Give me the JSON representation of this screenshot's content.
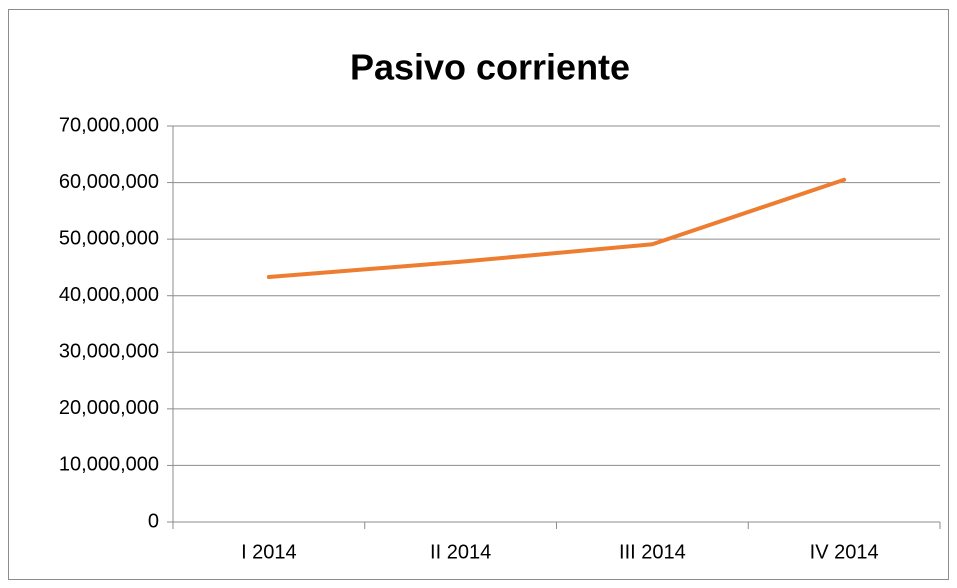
{
  "chart_data": {
    "type": "line",
    "title": "Pasivo corriente",
    "categories": [
      "I 2014",
      "II 2014",
      "III 2014",
      "IV 2014"
    ],
    "values": [
      43300000,
      46000000,
      49100000,
      60500000
    ],
    "color": "#ed7d31",
    "ylim": [
      0,
      70000000
    ],
    "yticks": [
      0,
      {
        "value": 10000000,
        "label": "10,000,000"
      },
      {
        "value": 20000000,
        "label": "20,000,000"
      },
      {
        "value": 30000000,
        "label": "30,000,000"
      },
      {
        "value": 40000000,
        "label": "40,000,000"
      },
      {
        "value": 50000000,
        "label": "50,000,000"
      },
      {
        "value": 60000000,
        "label": "60,000,000"
      },
      {
        "value": 70000000,
        "label": "70,000,000"
      }
    ],
    "grid": true
  }
}
